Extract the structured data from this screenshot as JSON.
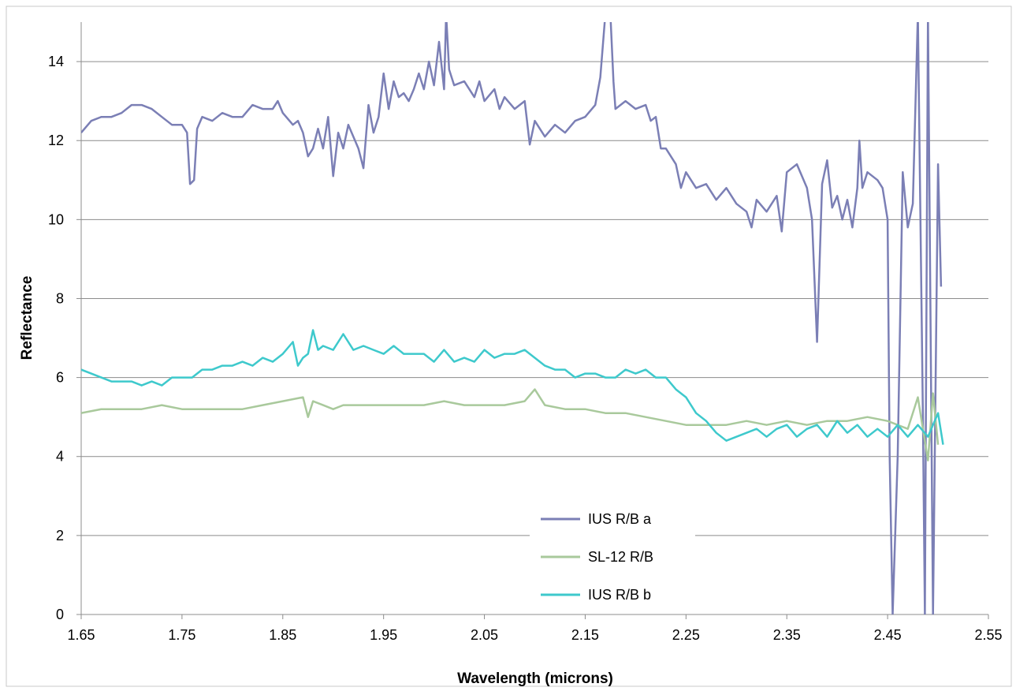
{
  "chart_data": {
    "type": "line",
    "title": "",
    "xlabel": "Wavelength (microns)",
    "ylabel": "Reflectance",
    "xlim": [
      1.65,
      2.55
    ],
    "ylim": [
      0,
      15
    ],
    "x_ticks": [
      "1.65",
      "1.75",
      "1.85",
      "1.95",
      "2.05",
      "2.15",
      "2.25",
      "2.35",
      "2.45",
      "2.55"
    ],
    "y_ticks": [
      "0",
      "2",
      "4",
      "6",
      "8",
      "10",
      "12",
      "14"
    ],
    "grid": "horizontal",
    "legend_position": "bottom-center",
    "series": [
      {
        "name": "IUS R/B a",
        "color": "#7b7fb5",
        "points": [
          [
            1.65,
            12.2
          ],
          [
            1.66,
            12.5
          ],
          [
            1.67,
            12.6
          ],
          [
            1.68,
            12.6
          ],
          [
            1.69,
            12.7
          ],
          [
            1.7,
            12.9
          ],
          [
            1.71,
            12.9
          ],
          [
            1.72,
            12.8
          ],
          [
            1.73,
            12.6
          ],
          [
            1.74,
            12.4
          ],
          [
            1.75,
            12.4
          ],
          [
            1.755,
            12.2
          ],
          [
            1.758,
            10.9
          ],
          [
            1.762,
            11.0
          ],
          [
            1.765,
            12.3
          ],
          [
            1.77,
            12.6
          ],
          [
            1.78,
            12.5
          ],
          [
            1.79,
            12.7
          ],
          [
            1.8,
            12.6
          ],
          [
            1.81,
            12.6
          ],
          [
            1.82,
            12.9
          ],
          [
            1.83,
            12.8
          ],
          [
            1.84,
            12.8
          ],
          [
            1.845,
            13.0
          ],
          [
            1.85,
            12.7
          ],
          [
            1.86,
            12.4
          ],
          [
            1.865,
            12.5
          ],
          [
            1.87,
            12.2
          ],
          [
            1.875,
            11.6
          ],
          [
            1.88,
            11.8
          ],
          [
            1.885,
            12.3
          ],
          [
            1.89,
            11.8
          ],
          [
            1.895,
            12.6
          ],
          [
            1.9,
            11.1
          ],
          [
            1.905,
            12.2
          ],
          [
            1.91,
            11.8
          ],
          [
            1.915,
            12.4
          ],
          [
            1.92,
            12.1
          ],
          [
            1.925,
            11.8
          ],
          [
            1.93,
            11.3
          ],
          [
            1.935,
            12.9
          ],
          [
            1.94,
            12.2
          ],
          [
            1.945,
            12.6
          ],
          [
            1.95,
            13.7
          ],
          [
            1.955,
            12.8
          ],
          [
            1.96,
            13.5
          ],
          [
            1.965,
            13.1
          ],
          [
            1.97,
            13.2
          ],
          [
            1.975,
            13.0
          ],
          [
            1.98,
            13.3
          ],
          [
            1.985,
            13.7
          ],
          [
            1.99,
            13.3
          ],
          [
            1.995,
            14.0
          ],
          [
            2.0,
            13.4
          ],
          [
            2.005,
            14.5
          ],
          [
            2.01,
            13.3
          ],
          [
            2.012,
            15.2
          ],
          [
            2.015,
            13.8
          ],
          [
            2.02,
            13.4
          ],
          [
            2.03,
            13.5
          ],
          [
            2.04,
            13.1
          ],
          [
            2.045,
            13.5
          ],
          [
            2.05,
            13.0
          ],
          [
            2.06,
            13.3
          ],
          [
            2.065,
            12.8
          ],
          [
            2.07,
            13.1
          ],
          [
            2.08,
            12.8
          ],
          [
            2.09,
            13.0
          ],
          [
            2.095,
            11.9
          ],
          [
            2.1,
            12.5
          ],
          [
            2.11,
            12.1
          ],
          [
            2.12,
            12.4
          ],
          [
            2.13,
            12.2
          ],
          [
            2.14,
            12.5
          ],
          [
            2.15,
            12.6
          ],
          [
            2.16,
            12.9
          ],
          [
            2.165,
            13.6
          ],
          [
            2.17,
            15.2
          ],
          [
            2.175,
            15.2
          ],
          [
            2.178,
            13.5
          ],
          [
            2.18,
            12.8
          ],
          [
            2.19,
            13.0
          ],
          [
            2.2,
            12.8
          ],
          [
            2.21,
            12.9
          ],
          [
            2.215,
            12.5
          ],
          [
            2.22,
            12.6
          ],
          [
            2.225,
            11.8
          ],
          [
            2.23,
            11.8
          ],
          [
            2.24,
            11.4
          ],
          [
            2.245,
            10.8
          ],
          [
            2.25,
            11.2
          ],
          [
            2.26,
            10.8
          ],
          [
            2.27,
            10.9
          ],
          [
            2.28,
            10.5
          ],
          [
            2.29,
            10.8
          ],
          [
            2.3,
            10.4
          ],
          [
            2.31,
            10.2
          ],
          [
            2.315,
            9.8
          ],
          [
            2.32,
            10.5
          ],
          [
            2.33,
            10.2
          ],
          [
            2.34,
            10.6
          ],
          [
            2.345,
            9.7
          ],
          [
            2.35,
            11.2
          ],
          [
            2.36,
            11.4
          ],
          [
            2.37,
            10.8
          ],
          [
            2.375,
            10.0
          ],
          [
            2.38,
            6.9
          ],
          [
            2.385,
            10.9
          ],
          [
            2.39,
            11.5
          ],
          [
            2.395,
            10.3
          ],
          [
            2.4,
            10.6
          ],
          [
            2.405,
            10.0
          ],
          [
            2.41,
            10.5
          ],
          [
            2.415,
            9.8
          ],
          [
            2.42,
            10.8
          ],
          [
            2.422,
            12.0
          ],
          [
            2.425,
            10.8
          ],
          [
            2.43,
            11.2
          ],
          [
            2.44,
            11.0
          ],
          [
            2.445,
            10.8
          ],
          [
            2.45,
            10.0
          ],
          [
            2.452,
            4.0
          ],
          [
            2.455,
            0.0
          ],
          [
            2.46,
            4.0
          ],
          [
            2.465,
            11.2
          ],
          [
            2.47,
            9.8
          ],
          [
            2.475,
            10.4
          ],
          [
            2.48,
            15.2
          ],
          [
            2.485,
            5.0
          ],
          [
            2.487,
            0.0
          ],
          [
            2.49,
            15.2
          ],
          [
            2.495,
            0.0
          ],
          [
            2.5,
            11.4
          ],
          [
            2.503,
            8.3
          ]
        ]
      },
      {
        "name": "SL-12 R/B",
        "color": "#a9c99c",
        "points": [
          [
            1.65,
            5.1
          ],
          [
            1.67,
            5.2
          ],
          [
            1.69,
            5.2
          ],
          [
            1.71,
            5.2
          ],
          [
            1.73,
            5.3
          ],
          [
            1.75,
            5.2
          ],
          [
            1.77,
            5.2
          ],
          [
            1.79,
            5.2
          ],
          [
            1.81,
            5.2
          ],
          [
            1.83,
            5.3
          ],
          [
            1.85,
            5.4
          ],
          [
            1.87,
            5.5
          ],
          [
            1.875,
            5.0
          ],
          [
            1.88,
            5.4
          ],
          [
            1.89,
            5.3
          ],
          [
            1.9,
            5.2
          ],
          [
            1.91,
            5.3
          ],
          [
            1.93,
            5.3
          ],
          [
            1.95,
            5.3
          ],
          [
            1.97,
            5.3
          ],
          [
            1.99,
            5.3
          ],
          [
            2.01,
            5.4
          ],
          [
            2.03,
            5.3
          ],
          [
            2.05,
            5.3
          ],
          [
            2.07,
            5.3
          ],
          [
            2.09,
            5.4
          ],
          [
            2.1,
            5.7
          ],
          [
            2.11,
            5.3
          ],
          [
            2.13,
            5.2
          ],
          [
            2.15,
            5.2
          ],
          [
            2.17,
            5.1
          ],
          [
            2.19,
            5.1
          ],
          [
            2.21,
            5.0
          ],
          [
            2.23,
            4.9
          ],
          [
            2.25,
            4.8
          ],
          [
            2.27,
            4.8
          ],
          [
            2.29,
            4.8
          ],
          [
            2.31,
            4.9
          ],
          [
            2.33,
            4.8
          ],
          [
            2.35,
            4.9
          ],
          [
            2.37,
            4.8
          ],
          [
            2.39,
            4.9
          ],
          [
            2.41,
            4.9
          ],
          [
            2.43,
            5.0
          ],
          [
            2.45,
            4.9
          ],
          [
            2.47,
            4.7
          ],
          [
            2.48,
            5.5
          ],
          [
            2.485,
            4.7
          ],
          [
            2.49,
            3.9
          ],
          [
            2.495,
            5.6
          ],
          [
            2.5,
            4.3
          ]
        ]
      },
      {
        "name": "IUS R/B b",
        "color": "#3ec9cc",
        "points": [
          [
            1.65,
            6.2
          ],
          [
            1.66,
            6.1
          ],
          [
            1.67,
            6.0
          ],
          [
            1.68,
            5.9
          ],
          [
            1.69,
            5.9
          ],
          [
            1.7,
            5.9
          ],
          [
            1.71,
            5.8
          ],
          [
            1.72,
            5.9
          ],
          [
            1.73,
            5.8
          ],
          [
            1.74,
            6.0
          ],
          [
            1.75,
            6.0
          ],
          [
            1.76,
            6.0
          ],
          [
            1.77,
            6.2
          ],
          [
            1.78,
            6.2
          ],
          [
            1.79,
            6.3
          ],
          [
            1.8,
            6.3
          ],
          [
            1.81,
            6.4
          ],
          [
            1.82,
            6.3
          ],
          [
            1.83,
            6.5
          ],
          [
            1.84,
            6.4
          ],
          [
            1.85,
            6.6
          ],
          [
            1.86,
            6.9
          ],
          [
            1.865,
            6.3
          ],
          [
            1.87,
            6.5
          ],
          [
            1.875,
            6.6
          ],
          [
            1.88,
            7.2
          ],
          [
            1.885,
            6.7
          ],
          [
            1.89,
            6.8
          ],
          [
            1.9,
            6.7
          ],
          [
            1.91,
            7.1
          ],
          [
            1.92,
            6.7
          ],
          [
            1.93,
            6.8
          ],
          [
            1.94,
            6.7
          ],
          [
            1.95,
            6.6
          ],
          [
            1.96,
            6.8
          ],
          [
            1.97,
            6.6
          ],
          [
            1.98,
            6.6
          ],
          [
            1.99,
            6.6
          ],
          [
            2.0,
            6.4
          ],
          [
            2.01,
            6.7
          ],
          [
            2.02,
            6.4
          ],
          [
            2.03,
            6.5
          ],
          [
            2.04,
            6.4
          ],
          [
            2.05,
            6.7
          ],
          [
            2.06,
            6.5
          ],
          [
            2.07,
            6.6
          ],
          [
            2.08,
            6.6
          ],
          [
            2.09,
            6.7
          ],
          [
            2.1,
            6.5
          ],
          [
            2.11,
            6.3
          ],
          [
            2.12,
            6.2
          ],
          [
            2.13,
            6.2
          ],
          [
            2.14,
            6.0
          ],
          [
            2.15,
            6.1
          ],
          [
            2.16,
            6.1
          ],
          [
            2.17,
            6.0
          ],
          [
            2.18,
            6.0
          ],
          [
            2.19,
            6.2
          ],
          [
            2.2,
            6.1
          ],
          [
            2.21,
            6.2
          ],
          [
            2.22,
            6.0
          ],
          [
            2.23,
            6.0
          ],
          [
            2.24,
            5.7
          ],
          [
            2.25,
            5.5
          ],
          [
            2.26,
            5.1
          ],
          [
            2.27,
            4.9
          ],
          [
            2.28,
            4.6
          ],
          [
            2.29,
            4.4
          ],
          [
            2.3,
            4.5
          ],
          [
            2.31,
            4.6
          ],
          [
            2.32,
            4.7
          ],
          [
            2.33,
            4.5
          ],
          [
            2.34,
            4.7
          ],
          [
            2.35,
            4.8
          ],
          [
            2.36,
            4.5
          ],
          [
            2.37,
            4.7
          ],
          [
            2.38,
            4.8
          ],
          [
            2.39,
            4.5
          ],
          [
            2.4,
            4.9
          ],
          [
            2.41,
            4.6
          ],
          [
            2.42,
            4.8
          ],
          [
            2.43,
            4.5
          ],
          [
            2.44,
            4.7
          ],
          [
            2.45,
            4.5
          ],
          [
            2.46,
            4.8
          ],
          [
            2.47,
            4.5
          ],
          [
            2.48,
            4.8
          ],
          [
            2.49,
            4.5
          ],
          [
            2.5,
            5.1
          ],
          [
            2.505,
            4.3
          ]
        ]
      }
    ]
  }
}
